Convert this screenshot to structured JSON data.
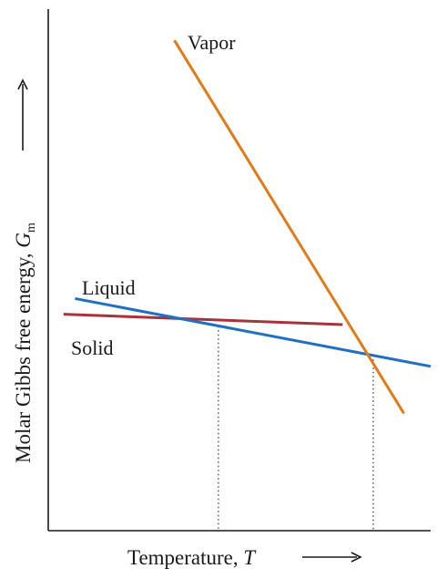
{
  "chart_data": {
    "type": "line",
    "title": "",
    "xlabel": "Temperature, T",
    "xlabel_parts": {
      "text": "Temperature, ",
      "var": "T"
    },
    "ylabel": "Molar Gibbs free energy, Gm",
    "ylabel_parts": {
      "text": "Molar Gibbs free energy, ",
      "var": "G",
      "sub": "m"
    },
    "xlim": [
      0,
      100
    ],
    "ylim": [
      0,
      100
    ],
    "axis_ticks": false,
    "grid": false,
    "legend": "inline labels",
    "series": [
      {
        "name": "Vapor",
        "key": "vapor",
        "color": "#e07b1a",
        "x": [
          33,
          93
        ],
        "y": [
          94,
          22.5
        ]
      },
      {
        "name": "Liquid",
        "key": "liquid",
        "color": "#1f6fc4",
        "x": [
          7,
          100
        ],
        "y": [
          44.5,
          31.5
        ]
      },
      {
        "name": "Solid",
        "key": "solid",
        "color": "#a8323a",
        "x": [
          4,
          77
        ],
        "y": [
          41.5,
          39.5
        ]
      }
    ],
    "reference_lines": [
      {
        "x": 44.5,
        "y": 39.2
      },
      {
        "x": 85,
        "y": 33.6
      }
    ]
  }
}
